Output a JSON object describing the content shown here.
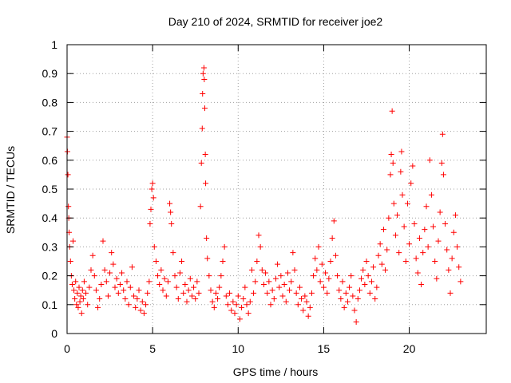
{
  "chart_data": {
    "type": "scatter",
    "title": "Day 210 of 2024, SRMTID for receiver joe2",
    "xlabel": "GPS time / hours",
    "ylabel": "SRMTID / TECUs",
    "xlim": [
      0,
      24.5
    ],
    "ylim": [
      0,
      1
    ],
    "xticks": [
      0,
      5,
      10,
      15,
      20
    ],
    "xtick_labels": [
      "0",
      "5",
      "10",
      "15",
      "20"
    ],
    "yticks": [
      0,
      0.1,
      0.2,
      0.3,
      0.4,
      0.5,
      0.6,
      0.7,
      0.8,
      0.9,
      1
    ],
    "ytick_labels": [
      "0",
      "0.1",
      "0.2",
      "0.3",
      "0.4",
      "0.5",
      "0.6",
      "0.7",
      "0.8",
      "0.9",
      "1"
    ],
    "grid": true,
    "marker": "+",
    "series": [
      {
        "name": "SRMTID",
        "color": "#ff0000",
        "points": [
          [
            0.0,
            0.68
          ],
          [
            0.02,
            0.63
          ],
          [
            0.05,
            0.55
          ],
          [
            0.08,
            0.44
          ],
          [
            0.1,
            0.4
          ],
          [
            0.12,
            0.35
          ],
          [
            0.15,
            0.3
          ],
          [
            0.2,
            0.25
          ],
          [
            0.25,
            0.2
          ],
          [
            0.3,
            0.17
          ],
          [
            0.35,
            0.32
          ],
          [
            0.4,
            0.15
          ],
          [
            0.45,
            0.12
          ],
          [
            0.5,
            0.18
          ],
          [
            0.55,
            0.1
          ],
          [
            0.6,
            0.14
          ],
          [
            0.65,
            0.09
          ],
          [
            0.7,
            0.16
          ],
          [
            0.75,
            0.11
          ],
          [
            0.8,
            0.13
          ],
          [
            0.85,
            0.07
          ],
          [
            0.9,
            0.15
          ],
          [
            0.95,
            0.12
          ],
          [
            1.0,
            0.18
          ],
          [
            1.1,
            0.14
          ],
          [
            1.2,
            0.1
          ],
          [
            1.3,
            0.16
          ],
          [
            1.4,
            0.22
          ],
          [
            1.5,
            0.27
          ],
          [
            1.6,
            0.2
          ],
          [
            1.7,
            0.15
          ],
          [
            1.8,
            0.09
          ],
          [
            1.9,
            0.12
          ],
          [
            2.0,
            0.17
          ],
          [
            2.1,
            0.32
          ],
          [
            2.2,
            0.22
          ],
          [
            2.3,
            0.18
          ],
          [
            2.4,
            0.13
          ],
          [
            2.5,
            0.21
          ],
          [
            2.6,
            0.28
          ],
          [
            2.7,
            0.24
          ],
          [
            2.8,
            0.16
          ],
          [
            2.9,
            0.19
          ],
          [
            3.0,
            0.14
          ],
          [
            3.1,
            0.17
          ],
          [
            3.2,
            0.21
          ],
          [
            3.3,
            0.15
          ],
          [
            3.4,
            0.12
          ],
          [
            3.5,
            0.18
          ],
          [
            3.6,
            0.1
          ],
          [
            3.7,
            0.16
          ],
          [
            3.8,
            0.23
          ],
          [
            3.9,
            0.13
          ],
          [
            4.0,
            0.09
          ],
          [
            4.1,
            0.12
          ],
          [
            4.2,
            0.15
          ],
          [
            4.3,
            0.08
          ],
          [
            4.4,
            0.11
          ],
          [
            4.5,
            0.07
          ],
          [
            4.6,
            0.1
          ],
          [
            4.7,
            0.14
          ],
          [
            4.8,
            0.18
          ],
          [
            4.85,
            0.38
          ],
          [
            4.9,
            0.43
          ],
          [
            4.95,
            0.5
          ],
          [
            5.0,
            0.52
          ],
          [
            5.05,
            0.47
          ],
          [
            5.1,
            0.3
          ],
          [
            5.2,
            0.25
          ],
          [
            5.3,
            0.2
          ],
          [
            5.4,
            0.17
          ],
          [
            5.5,
            0.22
          ],
          [
            5.6,
            0.15
          ],
          [
            5.7,
            0.19
          ],
          [
            5.8,
            0.13
          ],
          [
            5.9,
            0.18
          ],
          [
            6.0,
            0.45
          ],
          [
            6.05,
            0.42
          ],
          [
            6.1,
            0.38
          ],
          [
            6.2,
            0.28
          ],
          [
            6.3,
            0.2
          ],
          [
            6.4,
            0.16
          ],
          [
            6.5,
            0.12
          ],
          [
            6.6,
            0.21
          ],
          [
            6.7,
            0.25
          ],
          [
            6.8,
            0.14
          ],
          [
            6.9,
            0.17
          ],
          [
            7.0,
            0.11
          ],
          [
            7.1,
            0.15
          ],
          [
            7.2,
            0.19
          ],
          [
            7.3,
            0.13
          ],
          [
            7.4,
            0.16
          ],
          [
            7.5,
            0.12
          ],
          [
            7.6,
            0.18
          ],
          [
            7.7,
            0.14
          ],
          [
            7.8,
            0.44
          ],
          [
            7.85,
            0.59
          ],
          [
            7.9,
            0.71
          ],
          [
            7.92,
            0.83
          ],
          [
            7.95,
            0.9
          ],
          [
            8.0,
            0.92
          ],
          [
            8.02,
            0.88
          ],
          [
            8.05,
            0.78
          ],
          [
            8.08,
            0.62
          ],
          [
            8.1,
            0.52
          ],
          [
            8.15,
            0.33
          ],
          [
            8.2,
            0.26
          ],
          [
            8.3,
            0.2
          ],
          [
            8.4,
            0.15
          ],
          [
            8.5,
            0.11
          ],
          [
            8.6,
            0.09
          ],
          [
            8.7,
            0.14
          ],
          [
            8.8,
            0.12
          ],
          [
            8.9,
            0.16
          ],
          [
            9.0,
            0.2
          ],
          [
            9.1,
            0.25
          ],
          [
            9.2,
            0.3
          ],
          [
            9.3,
            0.13
          ],
          [
            9.4,
            0.1
          ],
          [
            9.5,
            0.14
          ],
          [
            9.6,
            0.08
          ],
          [
            9.7,
            0.11
          ],
          [
            9.8,
            0.07
          ],
          [
            9.9,
            0.1
          ],
          [
            10.0,
            0.13
          ],
          [
            10.1,
            0.05
          ],
          [
            10.2,
            0.09
          ],
          [
            10.3,
            0.12
          ],
          [
            10.4,
            0.16
          ],
          [
            10.5,
            0.1
          ],
          [
            10.6,
            0.07
          ],
          [
            10.7,
            0.11
          ],
          [
            10.8,
            0.22
          ],
          [
            10.9,
            0.14
          ],
          [
            11.0,
            0.18
          ],
          [
            11.1,
            0.25
          ],
          [
            11.2,
            0.34
          ],
          [
            11.3,
            0.3
          ],
          [
            11.4,
            0.22
          ],
          [
            11.5,
            0.17
          ],
          [
            11.6,
            0.21
          ],
          [
            11.7,
            0.14
          ],
          [
            11.8,
            0.18
          ],
          [
            11.9,
            0.1
          ],
          [
            12.0,
            0.15
          ],
          [
            12.1,
            0.12
          ],
          [
            12.2,
            0.19
          ],
          [
            12.3,
            0.24
          ],
          [
            12.4,
            0.16
          ],
          [
            12.5,
            0.2
          ],
          [
            12.6,
            0.13
          ],
          [
            12.7,
            0.17
          ],
          [
            12.8,
            0.11
          ],
          [
            12.9,
            0.21
          ],
          [
            13.0,
            0.15
          ],
          [
            13.1,
            0.18
          ],
          [
            13.2,
            0.28
          ],
          [
            13.3,
            0.22
          ],
          [
            13.4,
            0.14
          ],
          [
            13.5,
            0.1
          ],
          [
            13.6,
            0.16
          ],
          [
            13.7,
            0.12
          ],
          [
            13.8,
            0.08
          ],
          [
            13.9,
            0.13
          ],
          [
            14.0,
            0.11
          ],
          [
            14.1,
            0.06
          ],
          [
            14.2,
            0.09
          ],
          [
            14.3,
            0.14
          ],
          [
            14.4,
            0.2
          ],
          [
            14.5,
            0.26
          ],
          [
            14.6,
            0.22
          ],
          [
            14.7,
            0.3
          ],
          [
            14.8,
            0.18
          ],
          [
            14.9,
            0.24
          ],
          [
            15.0,
            0.16
          ],
          [
            15.1,
            0.21
          ],
          [
            15.2,
            0.14
          ],
          [
            15.3,
            0.19
          ],
          [
            15.4,
            0.25
          ],
          [
            15.5,
            0.33
          ],
          [
            15.6,
            0.39
          ],
          [
            15.7,
            0.27
          ],
          [
            15.8,
            0.2
          ],
          [
            15.9,
            0.15
          ],
          [
            16.0,
            0.12
          ],
          [
            16.1,
            0.18
          ],
          [
            16.2,
            0.09
          ],
          [
            16.3,
            0.14
          ],
          [
            16.4,
            0.11
          ],
          [
            16.5,
            0.16
          ],
          [
            16.6,
            0.2
          ],
          [
            16.7,
            0.13
          ],
          [
            16.8,
            0.08
          ],
          [
            16.9,
            0.04
          ],
          [
            17.0,
            0.12
          ],
          [
            17.1,
            0.15
          ],
          [
            17.2,
            0.19
          ],
          [
            17.3,
            0.22
          ],
          [
            17.4,
            0.17
          ],
          [
            17.5,
            0.25
          ],
          [
            17.6,
            0.2
          ],
          [
            17.7,
            0.14
          ],
          [
            17.8,
            0.18
          ],
          [
            17.9,
            0.23
          ],
          [
            18.0,
            0.12
          ],
          [
            18.1,
            0.16
          ],
          [
            18.2,
            0.27
          ],
          [
            18.3,
            0.31
          ],
          [
            18.4,
            0.24
          ],
          [
            18.5,
            0.36
          ],
          [
            18.6,
            0.22
          ],
          [
            18.7,
            0.29
          ],
          [
            18.8,
            0.4
          ],
          [
            18.9,
            0.55
          ],
          [
            18.95,
            0.62
          ],
          [
            19.0,
            0.77
          ],
          [
            19.05,
            0.59
          ],
          [
            19.1,
            0.45
          ],
          [
            19.2,
            0.34
          ],
          [
            19.3,
            0.41
          ],
          [
            19.4,
            0.28
          ],
          [
            19.5,
            0.56
          ],
          [
            19.55,
            0.63
          ],
          [
            19.6,
            0.48
          ],
          [
            19.7,
            0.37
          ],
          [
            19.8,
            0.25
          ],
          [
            19.9,
            0.45
          ],
          [
            20.0,
            0.31
          ],
          [
            20.1,
            0.52
          ],
          [
            20.2,
            0.58
          ],
          [
            20.3,
            0.38
          ],
          [
            20.4,
            0.26
          ],
          [
            20.5,
            0.21
          ],
          [
            20.6,
            0.33
          ],
          [
            20.7,
            0.17
          ],
          [
            20.8,
            0.28
          ],
          [
            20.9,
            0.36
          ],
          [
            21.0,
            0.44
          ],
          [
            21.1,
            0.3
          ],
          [
            21.2,
            0.6
          ],
          [
            21.3,
            0.48
          ],
          [
            21.4,
            0.37
          ],
          [
            21.5,
            0.25
          ],
          [
            21.6,
            0.19
          ],
          [
            21.7,
            0.32
          ],
          [
            21.8,
            0.42
          ],
          [
            21.9,
            0.59
          ],
          [
            21.95,
            0.69
          ],
          [
            22.0,
            0.55
          ],
          [
            22.1,
            0.38
          ],
          [
            22.2,
            0.29
          ],
          [
            22.3,
            0.22
          ],
          [
            22.4,
            0.14
          ],
          [
            22.5,
            0.26
          ],
          [
            22.6,
            0.35
          ],
          [
            22.7,
            0.41
          ],
          [
            22.8,
            0.3
          ],
          [
            22.9,
            0.23
          ],
          [
            23.0,
            0.18
          ]
        ]
      }
    ]
  }
}
